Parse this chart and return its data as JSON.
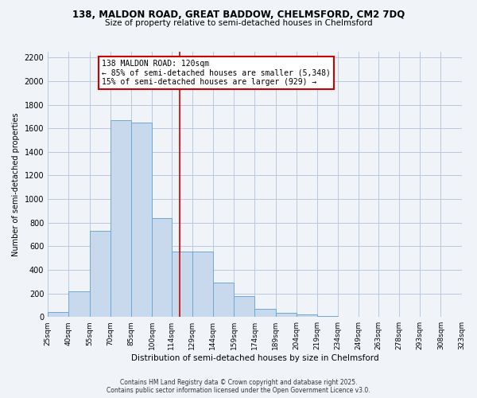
{
  "title1": "138, MALDON ROAD, GREAT BADDOW, CHELMSFORD, CM2 7DQ",
  "title2": "Size of property relative to semi-detached houses in Chelmsford",
  "xlabel": "Distribution of semi-detached houses by size in Chelmsford",
  "ylabel": "Number of semi-detached properties",
  "bin_edges": [
    25,
    40,
    55,
    70,
    85,
    100,
    114,
    129,
    144,
    159,
    174,
    189,
    204,
    219,
    234,
    249,
    263,
    278,
    293,
    308,
    323
  ],
  "bin_labels": [
    "25sqm",
    "40sqm",
    "55sqm",
    "70sqm",
    "85sqm",
    "100sqm",
    "114sqm",
    "129sqm",
    "144sqm",
    "159sqm",
    "174sqm",
    "189sqm",
    "204sqm",
    "219sqm",
    "234sqm",
    "249sqm",
    "263sqm",
    "278sqm",
    "293sqm",
    "308sqm",
    "323sqm"
  ],
  "counts": [
    40,
    220,
    730,
    1670,
    1650,
    840,
    555,
    555,
    295,
    175,
    70,
    35,
    20,
    10,
    0,
    0,
    0,
    0,
    0,
    0
  ],
  "bar_color": "#c8d9ee",
  "bar_edge_color": "#6fa8d4",
  "vline_x": 120,
  "vline_color": "#cc0000",
  "annotation_title": "138 MALDON ROAD: 120sqm",
  "annotation_line1": "← 85% of semi-detached houses are smaller (5,348)",
  "annotation_line2": "15% of semi-detached houses are larger (929) →",
  "annotation_box_color": "#ffffff",
  "annotation_box_edge_color": "#cc0000",
  "ylim": [
    0,
    2250
  ],
  "yticks": [
    0,
    200,
    400,
    600,
    800,
    1000,
    1200,
    1400,
    1600,
    1800,
    2000,
    2200
  ],
  "footer1": "Contains HM Land Registry data © Crown copyright and database right 2025.",
  "footer2": "Contains public sector information licensed under the Open Government Licence v3.0.",
  "bg_color": "#f0f4f8",
  "plot_bg_color": "#f0f4f8",
  "grid_color": "#b8c8de"
}
